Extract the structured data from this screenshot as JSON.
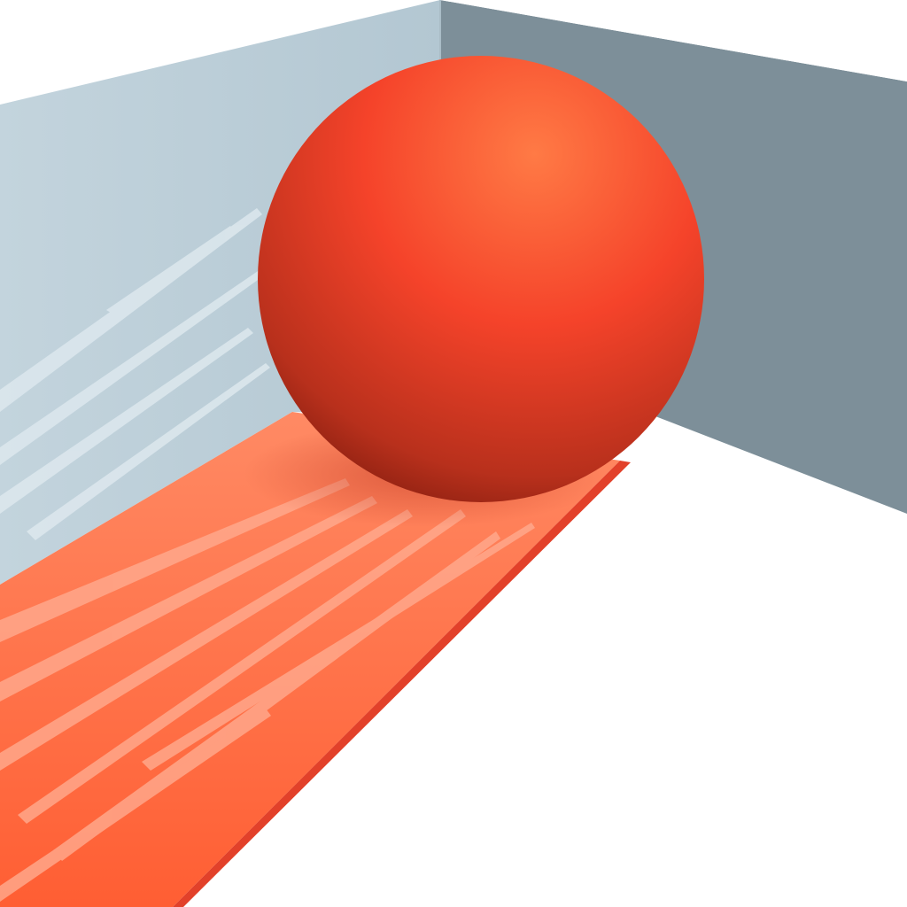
{
  "scene": {
    "objects": {
      "ball": "red-sphere",
      "trail": "paint-trail",
      "left_wall": "left-wall",
      "back_wall": "back-wall",
      "floor": "floor"
    },
    "colors": {
      "floor": "#ffffff",
      "left_wall": "#b9ccd6",
      "left_wall_light": "#d6e3ea",
      "back_wall": "#7d8f99",
      "wall_top_edge": "#ffffff",
      "ball_highlight": "#ff7a45",
      "ball_base": "#f5432a",
      "ball_shadow": "#8a1f10",
      "trail_base": "#ff6a3d",
      "trail_light": "#ff9a7a",
      "trail_edge": "#e2412a"
    }
  }
}
